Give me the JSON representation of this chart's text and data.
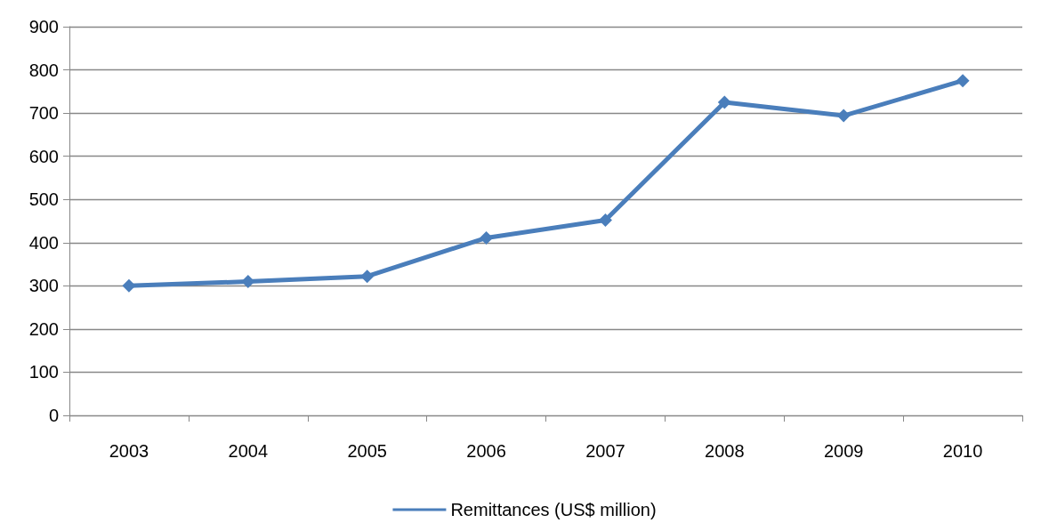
{
  "chart_data": {
    "type": "line",
    "categories": [
      "2003",
      "2004",
      "2005",
      "2006",
      "2007",
      "2008",
      "2009",
      "2010"
    ],
    "series": [
      {
        "name": "Remittances (US$ million)",
        "color": "#4a7ebb",
        "values": [
          300,
          310,
          322,
          411,
          452,
          725,
          694,
          775
        ]
      }
    ],
    "ylim": [
      0,
      900
    ],
    "yticks": [
      0,
      100,
      200,
      300,
      400,
      500,
      600,
      700,
      800,
      900
    ],
    "grid": "y",
    "legend": "bottom",
    "marker": "diamond",
    "line_style": "solid"
  }
}
